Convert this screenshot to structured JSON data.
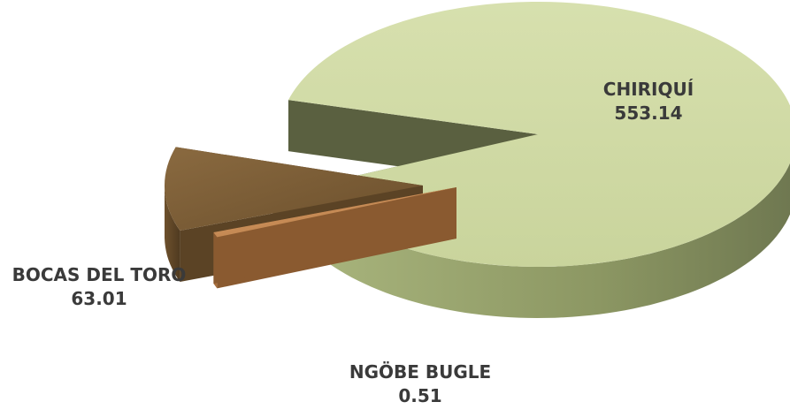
{
  "chart_data": {
    "type": "pie",
    "style": "3d-exploded",
    "title": "",
    "categories": [
      "CHIRIQUÍ",
      "NGÖBE BUGLE",
      "BOCAS DEL TORO"
    ],
    "values": [
      553.14,
      0.51,
      63.01
    ],
    "value_labels": [
      "553.14",
      "0.51",
      "63.01"
    ],
    "colors": {
      "CHIRIQUÍ": "#cfd9a3",
      "NGÖBE BUGLE": "#c98a55",
      "BOCAS DEL TORO": "#7a5a33"
    },
    "legend": "none"
  }
}
